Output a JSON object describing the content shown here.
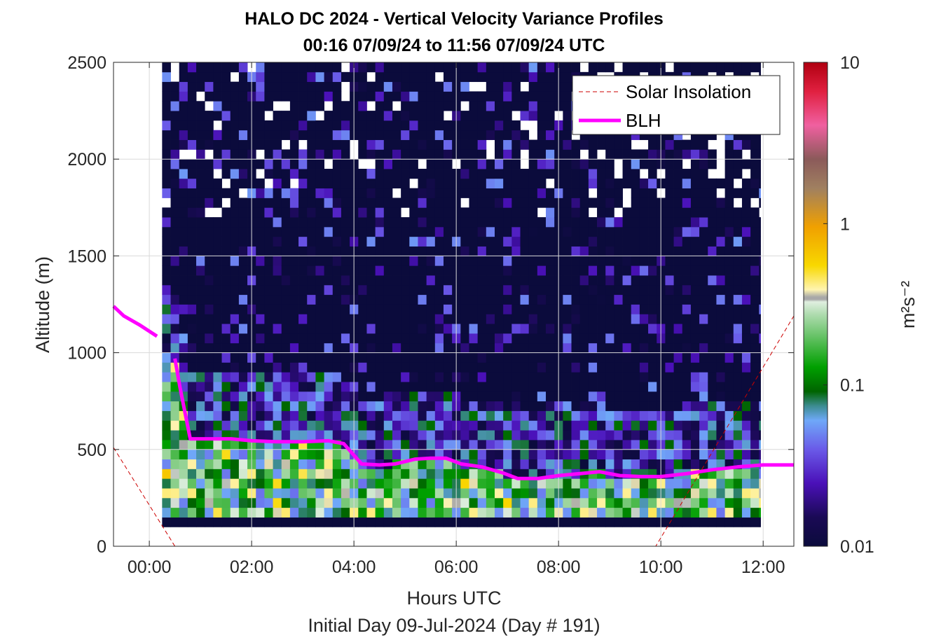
{
  "chart_data": {
    "type": "heatmap",
    "title": "HALO DC 2024 - Vertical Velocity Variance Profiles",
    "subtitle": "00:16 07/09/24 to 11:56 07/09/24  UTC",
    "xlabel": "Hours UTC",
    "xlabel2": "Initial Day 09-Jul-2024 (Day # 191)",
    "ylabel": "Altitude (m)",
    "xlim": [
      -0.7,
      12.6
    ],
    "ylim": [
      0,
      2500
    ],
    "xticks": [
      0,
      2,
      4,
      6,
      8,
      10,
      12
    ],
    "xtick_labels": [
      "00:00",
      "02:00",
      "04:00",
      "06:00",
      "08:00",
      "10:00",
      "12:00"
    ],
    "yticks": [
      0,
      500,
      1000,
      1500,
      2000,
      2500
    ],
    "ytick_labels": [
      "0",
      "500",
      "1000",
      "1500",
      "2000",
      "2500"
    ],
    "colorbar": {
      "label": "m²s⁻²",
      "scale": "log",
      "range": [
        0.01,
        10
      ],
      "ticks": [
        0.01,
        0.1,
        1,
        10
      ],
      "tick_labels": [
        "0.01",
        "0.1",
        "1",
        "10"
      ]
    },
    "legend": {
      "location": "top-right",
      "entries": [
        {
          "label": "Solar Insolation",
          "style": "dashed",
          "color": "#cc0000"
        },
        {
          "label": "BLH",
          "style": "solid",
          "color": "#ff00ff"
        }
      ]
    },
    "grid": true,
    "series": [
      {
        "name": "BLH",
        "x": [
          -0.7,
          -0.5,
          -0.2,
          0.15,
          0.5,
          0.6,
          0.8,
          1.2,
          1.6,
          2.0,
          2.5,
          3.0,
          3.5,
          3.8,
          4.15,
          4.5,
          4.8,
          5.2,
          5.5,
          5.8,
          6.1,
          6.5,
          6.9,
          7.2,
          7.6,
          8.0,
          8.4,
          8.8,
          9.2,
          9.6,
          10.0,
          10.5,
          11.0,
          11.5,
          12.0,
          12.6
        ],
        "y": [
          1240,
          1190,
          1145,
          1085,
          970,
          820,
          555,
          555,
          555,
          545,
          540,
          540,
          545,
          530,
          425,
          420,
          425,
          450,
          455,
          455,
          425,
          410,
          380,
          350,
          350,
          365,
          375,
          385,
          365,
          360,
          360,
          375,
          395,
          410,
          420,
          420
        ]
      },
      {
        "name": "Solar Insolation",
        "x": [
          -0.7,
          0.5,
          9.9,
          12.6
        ],
        "y": [
          510,
          0,
          0,
          1190
        ]
      }
    ],
    "heatmap": {
      "x_range": [
        0.25,
        11.95
      ],
      "y_range": [
        100,
        2500
      ],
      "bin_seconds_hours": 0.1667,
      "bin_meters": 50,
      "note": "variance cells span 100-2500 m; lowest row (100-150 m) ~0.01; higher values (0.05-0.5) concentrated below the BLH; sparse missing cells (white) above ~1600 m"
    }
  }
}
